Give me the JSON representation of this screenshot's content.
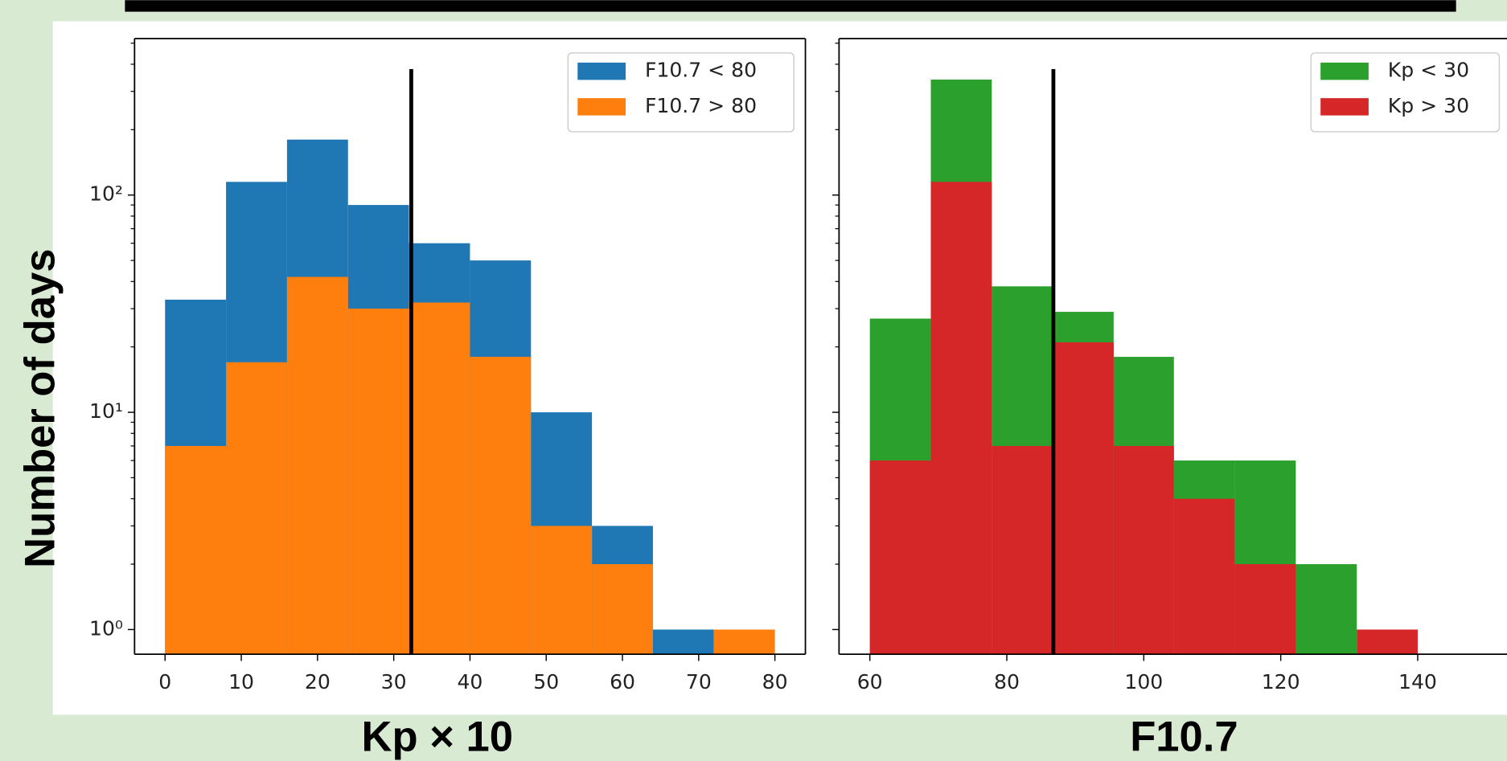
{
  "chart_data": [
    {
      "type": "histogram",
      "ylabel": "Number of days",
      "xlabel": "Kp × 10",
      "bins": [
        0,
        8,
        16,
        24,
        32,
        40,
        48,
        56,
        64,
        72,
        80
      ],
      "series": [
        {
          "name": "F10.7 < 80",
          "color": "#1f77b4",
          "values": [
            33,
            115,
            180,
            90,
            60,
            50,
            10,
            3,
            1,
            0
          ]
        },
        {
          "name": "F10.7 > 80",
          "color": "#ff7f0e",
          "values": [
            7,
            17,
            42,
            30,
            32,
            18,
            3,
            2,
            0,
            1
          ]
        }
      ],
      "vline": {
        "x": 32.3,
        "ymax": 380
      },
      "xlim": [
        -4,
        84
      ],
      "xticks": [
        0,
        10,
        20,
        30,
        40,
        50,
        60,
        70,
        80
      ],
      "ylim": [
        0.77,
        525
      ],
      "log_y": true,
      "yticks": [
        {
          "value": 1,
          "label": "10⁰"
        },
        {
          "value": 10,
          "label": "10¹"
        },
        {
          "value": 100,
          "label": "10²"
        }
      ],
      "yminorticks": [
        2,
        3,
        4,
        5,
        6,
        7,
        8,
        9,
        20,
        30,
        40,
        50,
        60,
        70,
        80,
        90,
        200,
        300,
        400,
        500
      ],
      "legend": "upper right"
    },
    {
      "type": "histogram",
      "xlabel": "F10.7",
      "bins": [
        60,
        68.9,
        77.8,
        86.7,
        95.6,
        104.4,
        113.3,
        122.2,
        131.1,
        140
      ],
      "series": [
        {
          "name": "Kp < 30",
          "color": "#2ca02c",
          "values": [
            27,
            340,
            38,
            29,
            18,
            6,
            6,
            2,
            0
          ]
        },
        {
          "name": "Kp > 30",
          "color": "#d62728",
          "values": [
            6,
            115,
            7,
            21,
            7,
            4,
            2,
            0,
            1
          ]
        }
      ],
      "vline": {
        "x": 86.8,
        "ymax": 380
      },
      "xlim": [
        55.5,
        153.6
      ],
      "xticks": [
        60,
        80,
        100,
        120,
        140
      ],
      "ylim": [
        0.77,
        525
      ],
      "log_y": true,
      "yticks": [
        1,
        10,
        100
      ],
      "yminorticks": [
        2,
        3,
        4,
        5,
        6,
        7,
        8,
        9,
        20,
        30,
        40,
        50,
        60,
        70,
        80,
        90,
        200,
        300,
        400,
        500
      ],
      "legend": "upper right"
    }
  ]
}
